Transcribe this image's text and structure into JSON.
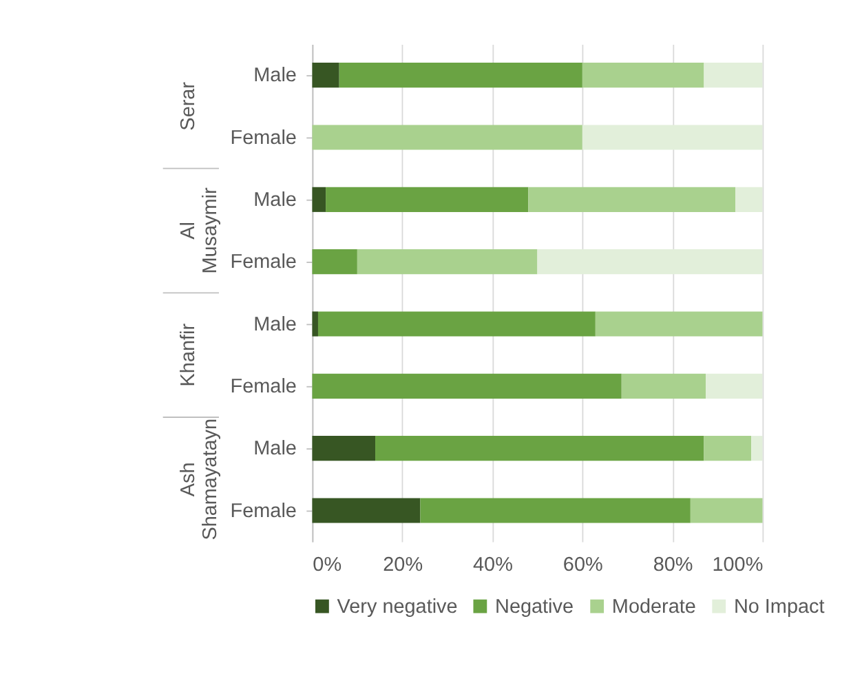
{
  "chart_data": {
    "type": "bar",
    "orientation": "horizontal",
    "stacked": true,
    "categories": [
      "Male",
      "Female",
      "Male",
      "Female",
      "Male",
      "Female",
      "Male",
      "Female"
    ],
    "annotations": [
      "Serar",
      "Al Musaymir",
      "Khanfir",
      "Ash Shamayatayn"
    ],
    "series": [
      {
        "name": "Very negative",
        "color": "#375623",
        "values": [
          6,
          0,
          3,
          0,
          1.3,
          0,
          14,
          24
        ]
      },
      {
        "name": "Negative",
        "color": "#6aa343",
        "values": [
          54,
          0,
          45,
          10,
          61.6,
          68.7,
          73,
          60
        ]
      },
      {
        "name": "Moderate",
        "color": "#a9d18e",
        "values": [
          27,
          60,
          46,
          40,
          37.1,
          18.7,
          10.5,
          16
        ]
      },
      {
        "name": "No Impact",
        "color": "#e2efda",
        "values": [
          13,
          40,
          6,
          50,
          0,
          12.6,
          2.5,
          0
        ]
      }
    ],
    "xlim": [
      0,
      100
    ],
    "xticks": [
      {
        "value": 0,
        "label": "0%"
      },
      {
        "value": 20,
        "label": "20%"
      },
      {
        "value": 40,
        "label": "40%"
      },
      {
        "value": 60,
        "label": "60%"
      },
      {
        "value": 80,
        "label": "80%"
      },
      {
        "value": 100,
        "label": "100%"
      }
    ],
    "grid": "x",
    "legend": "bottom"
  }
}
